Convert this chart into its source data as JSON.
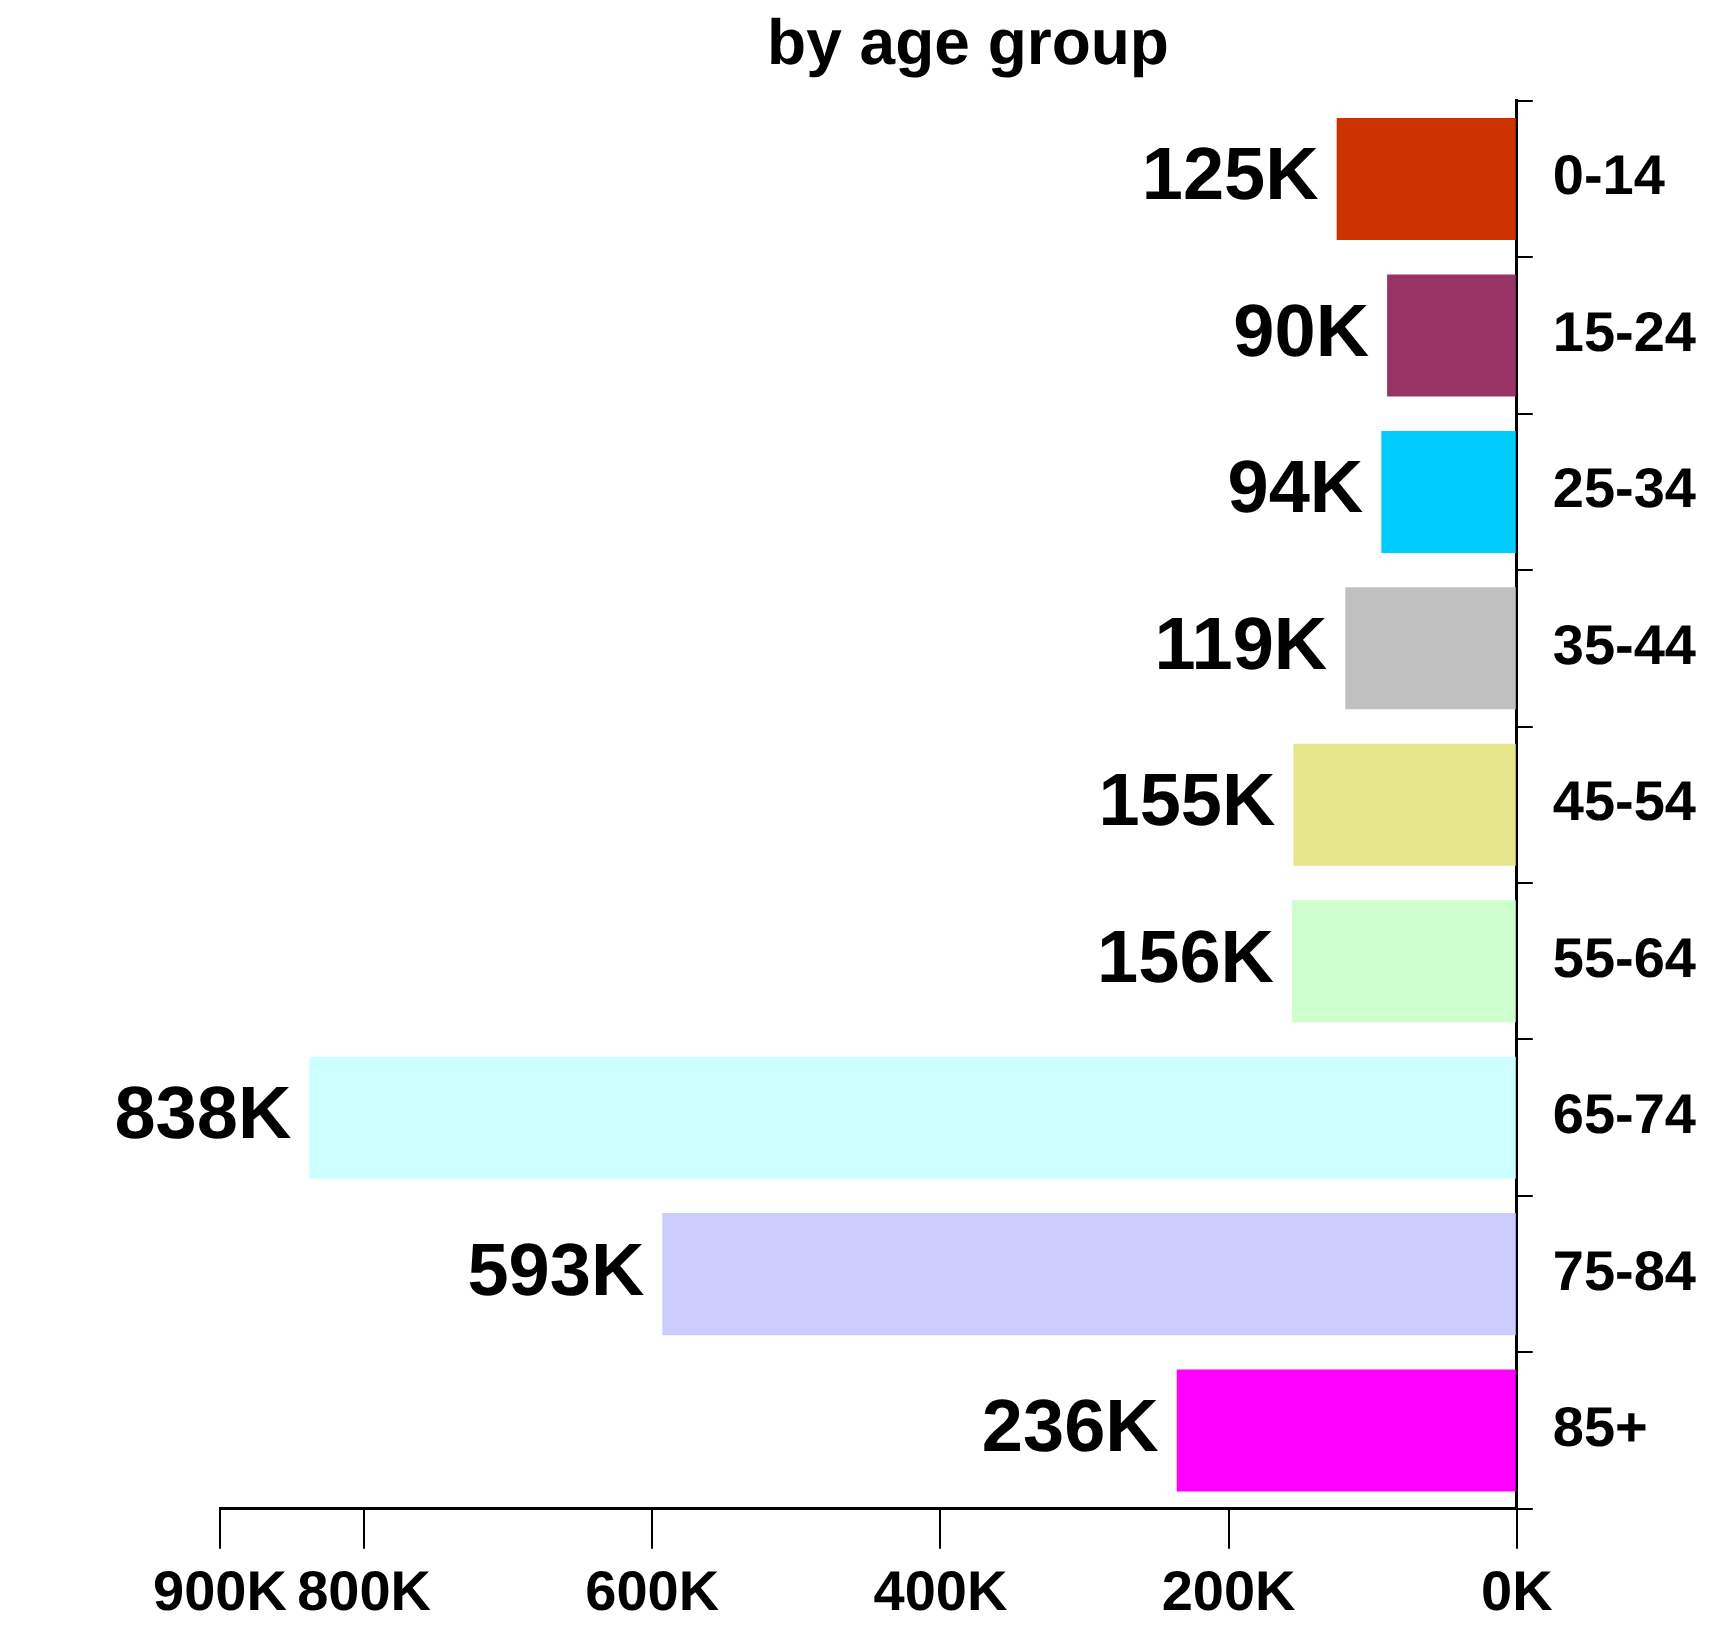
{
  "chart_data": {
    "type": "bar",
    "orientation": "horizontal",
    "title": "by age group",
    "categories": [
      "0-14",
      "15-24",
      "25-34",
      "35-44",
      "45-54",
      "55-64",
      "65-74",
      "75-84",
      "85+"
    ],
    "values": [
      125000,
      90000,
      94000,
      119000,
      155000,
      156000,
      838000,
      593000,
      236000
    ],
    "value_labels": [
      "125K",
      "90K",
      "94K",
      "119K",
      "155K",
      "156K",
      "838K",
      "593K",
      "236K"
    ],
    "colors": [
      "#cc3300",
      "#993366",
      "#00ccff",
      "#c0c0c0",
      "#e6e68a",
      "#ccffcc",
      "#ccffff",
      "#ccccff",
      "#ff00ff"
    ],
    "xlim": [
      900000,
      0
    ],
    "xticks": [
      {
        "value": 900000,
        "label": "900K"
      },
      {
        "value": 800000,
        "label": "800K"
      },
      {
        "value": 600000,
        "label": "600K"
      },
      {
        "value": 400000,
        "label": "400K"
      },
      {
        "value": 200000,
        "label": "200K"
      },
      {
        "value": 0,
        "label": "0K"
      }
    ],
    "grid": false,
    "legend": false
  }
}
